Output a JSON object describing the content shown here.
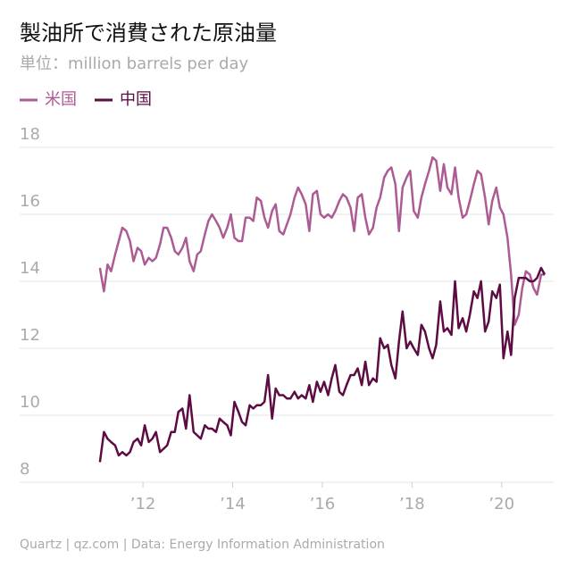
{
  "chart_data": {
    "type": "line",
    "title": "製油所で消費された原油量",
    "subtitle": "単位：million barrels per day",
    "source": "Quartz | qz.com | Data: Energy Information Administration",
    "x": [
      2011.04,
      2011.13,
      2011.21,
      2011.29,
      2011.38,
      2011.46,
      2011.54,
      2011.63,
      2011.71,
      2011.79,
      2011.88,
      2011.96,
      2012.04,
      2012.13,
      2012.21,
      2012.29,
      2012.38,
      2012.46,
      2012.54,
      2012.63,
      2012.71,
      2012.79,
      2012.88,
      2012.96,
      2013.04,
      2013.13,
      2013.21,
      2013.29,
      2013.38,
      2013.46,
      2013.54,
      2013.63,
      2013.71,
      2013.79,
      2013.88,
      2013.96,
      2014.04,
      2014.13,
      2014.21,
      2014.29,
      2014.38,
      2014.46,
      2014.54,
      2014.63,
      2014.71,
      2014.79,
      2014.88,
      2014.96,
      2015.04,
      2015.13,
      2015.21,
      2015.29,
      2015.38,
      2015.46,
      2015.54,
      2015.63,
      2015.71,
      2015.79,
      2015.88,
      2015.96,
      2016.04,
      2016.13,
      2016.21,
      2016.29,
      2016.38,
      2016.46,
      2016.54,
      2016.63,
      2016.71,
      2016.79,
      2016.88,
      2016.96,
      2017.04,
      2017.13,
      2017.21,
      2017.29,
      2017.38,
      2017.46,
      2017.54,
      2017.63,
      2017.71,
      2017.79,
      2017.88,
      2017.96,
      2018.04,
      2018.13,
      2018.21,
      2018.29,
      2018.38,
      2018.46,
      2018.54,
      2018.63,
      2018.71,
      2018.79,
      2018.88,
      2018.96,
      2019.04,
      2019.13,
      2019.21,
      2019.29,
      2019.38,
      2019.46,
      2019.54,
      2019.63,
      2019.71,
      2019.79,
      2019.88,
      2019.96,
      2020.04,
      2020.13,
      2020.21,
      2020.29,
      2020.38,
      2020.46,
      2020.54,
      2020.63,
      2020.71,
      2020.79,
      2020.88,
      2020.96
    ],
    "series": [
      {
        "name": "米国",
        "color": "#ad5b93",
        "values": [
          14.4,
          13.7,
          14.5,
          14.3,
          14.8,
          15.2,
          15.6,
          15.5,
          15.2,
          14.6,
          15.0,
          14.9,
          14.5,
          14.7,
          14.6,
          14.7,
          15.1,
          15.6,
          15.6,
          15.3,
          14.9,
          14.8,
          15.0,
          15.3,
          14.6,
          14.3,
          14.8,
          14.9,
          15.4,
          15.8,
          16.0,
          15.8,
          15.6,
          15.3,
          15.6,
          16.0,
          15.3,
          15.2,
          15.2,
          15.9,
          15.9,
          15.8,
          16.5,
          16.4,
          15.9,
          15.6,
          16.1,
          16.3,
          15.5,
          15.4,
          15.7,
          16.0,
          16.5,
          16.8,
          16.6,
          16.3,
          15.5,
          16.6,
          16.7,
          16.0,
          15.9,
          16.0,
          15.9,
          16.1,
          16.4,
          16.6,
          16.5,
          16.2,
          15.5,
          16.5,
          16.6,
          15.9,
          15.4,
          15.6,
          16.2,
          16.5,
          17.1,
          17.3,
          17.4,
          16.9,
          15.5,
          16.8,
          17.1,
          17.3,
          16.1,
          15.9,
          16.5,
          16.9,
          17.3,
          17.7,
          17.6,
          16.7,
          17.5,
          16.8,
          16.6,
          17.4,
          16.5,
          15.9,
          16.0,
          16.4,
          16.9,
          17.3,
          17.2,
          16.5,
          15.7,
          16.4,
          16.8,
          16.2,
          16.0,
          15.3,
          14.2,
          12.7,
          13.0,
          13.8,
          14.3,
          14.2,
          13.8,
          13.6,
          14.2,
          14.2
        ]
      },
      {
        "name": "中国",
        "color": "#5c0c42",
        "values": [
          8.6,
          9.5,
          9.3,
          9.2,
          9.1,
          8.8,
          8.9,
          8.8,
          8.9,
          9.2,
          9.3,
          9.1,
          9.7,
          9.2,
          9.3,
          9.5,
          8.9,
          9.0,
          9.1,
          9.5,
          9.5,
          10.1,
          10.2,
          9.6,
          10.6,
          9.5,
          9.4,
          9.3,
          9.7,
          9.6,
          9.6,
          9.5,
          9.9,
          9.8,
          9.7,
          9.4,
          10.4,
          10.1,
          9.8,
          9.7,
          10.3,
          10.2,
          10.3,
          10.3,
          10.4,
          11.2,
          9.9,
          10.8,
          10.6,
          10.6,
          10.5,
          10.5,
          10.7,
          10.5,
          10.6,
          10.5,
          10.9,
          10.4,
          11.0,
          10.7,
          11.0,
          10.6,
          11.1,
          11.5,
          10.7,
          10.6,
          10.9,
          11.2,
          11.2,
          11.4,
          10.9,
          11.6,
          10.9,
          11.1,
          11.0,
          12.3,
          12.0,
          12.1,
          11.5,
          11.1,
          12.2,
          13.1,
          12.0,
          12.2,
          12.0,
          11.8,
          12.7,
          12.5,
          12.0,
          11.7,
          12.1,
          13.4,
          12.5,
          12.6,
          12.4,
          14.0,
          12.6,
          12.9,
          12.5,
          13.0,
          13.7,
          13.5,
          14.0,
          12.5,
          12.8,
          13.7,
          13.5,
          13.9,
          11.7,
          12.5,
          11.8,
          13.5,
          14.1,
          14.1,
          14.1,
          14.0,
          14.0,
          14.1,
          14.4,
          14.2
        ]
      }
    ],
    "xlim": [
      2009.25,
      2021.16
    ],
    "xticks": [
      {
        "value": 2012,
        "label": "’12"
      },
      {
        "value": 2014,
        "label": "’14"
      },
      {
        "value": 2016,
        "label": "’16"
      },
      {
        "value": 2018,
        "label": "’18"
      },
      {
        "value": 2020,
        "label": "’20"
      }
    ],
    "ylim": [
      8,
      18
    ],
    "yticks": [
      8,
      10,
      12,
      14,
      16,
      18
    ],
    "grid": true
  }
}
